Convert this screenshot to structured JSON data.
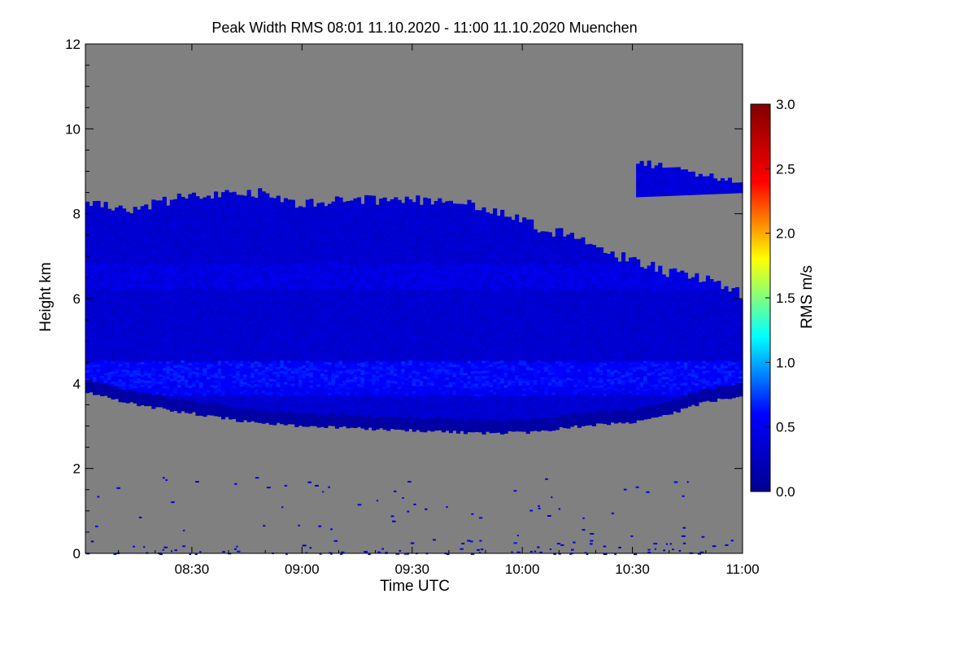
{
  "chart_data": {
    "type": "heatmap",
    "title": "Peak Width RMS   08:01 11.10.2020 - 11:00 11.10.2020 Muenchen",
    "xlabel": "Time UTC",
    "ylabel": "Height km",
    "x_range_minutes": [
      481,
      660
    ],
    "y_range": [
      0,
      12
    ],
    "x_ticks": [
      {
        "label": "08:30",
        "minutes": 510
      },
      {
        "label": "09:00",
        "minutes": 540
      },
      {
        "label": "09:30",
        "minutes": 570
      },
      {
        "label": "10:00",
        "minutes": 600
      },
      {
        "label": "10:30",
        "minutes": 630
      },
      {
        "label": "11:00",
        "minutes": 660
      }
    ],
    "y_ticks": [
      0,
      2,
      4,
      6,
      8,
      10,
      12
    ],
    "colorbar": {
      "label": "RMS m/s",
      "range": [
        0.0,
        3.0
      ],
      "ticks": [
        "0.0",
        "0.5",
        "1.0",
        "1.5",
        "2.0",
        "2.5",
        "3.0"
      ],
      "colormap": [
        "#00008f",
        "#0000ff",
        "#00ffff",
        "#ffff00",
        "#ff0000",
        "#800000"
      ]
    },
    "background_color": "#808080",
    "cloud_layer": {
      "description_values": "main echo layer",
      "top_km": [
        [
          481,
          8.2
        ],
        [
          495,
          8.1
        ],
        [
          510,
          8.4
        ],
        [
          525,
          8.5
        ],
        [
          540,
          8.2
        ],
        [
          555,
          8.3
        ],
        [
          570,
          8.3
        ],
        [
          585,
          8.2
        ],
        [
          595,
          8.0
        ],
        [
          605,
          7.6
        ],
        [
          615,
          7.4
        ],
        [
          625,
          7.0
        ],
        [
          640,
          6.6
        ],
        [
          655,
          6.3
        ],
        [
          660,
          6.0
        ]
      ],
      "bottom_km": [
        [
          481,
          3.8
        ],
        [
          495,
          3.5
        ],
        [
          510,
          3.3
        ],
        [
          525,
          3.1
        ],
        [
          540,
          3.0
        ],
        [
          555,
          2.95
        ],
        [
          570,
          2.9
        ],
        [
          585,
          2.85
        ],
        [
          600,
          2.85
        ],
        [
          615,
          3.0
        ],
        [
          630,
          3.1
        ],
        [
          640,
          3.3
        ],
        [
          650,
          3.6
        ],
        [
          660,
          3.7
        ]
      ],
      "typical_rms": 0.35,
      "band_rms": [
        [
          4.0,
          0.55
        ],
        [
          4.2,
          0.6
        ],
        [
          6.5,
          0.45
        ]
      ]
    },
    "upper_layer": {
      "x_minutes": [
        631,
        660
      ],
      "top_km": 9.2,
      "bottom_km": 8.4,
      "typical_rms": 0.4
    },
    "low_echoes": {
      "height_range_km": [
        0,
        1.8
      ],
      "typical_rms": 0.45
    }
  }
}
